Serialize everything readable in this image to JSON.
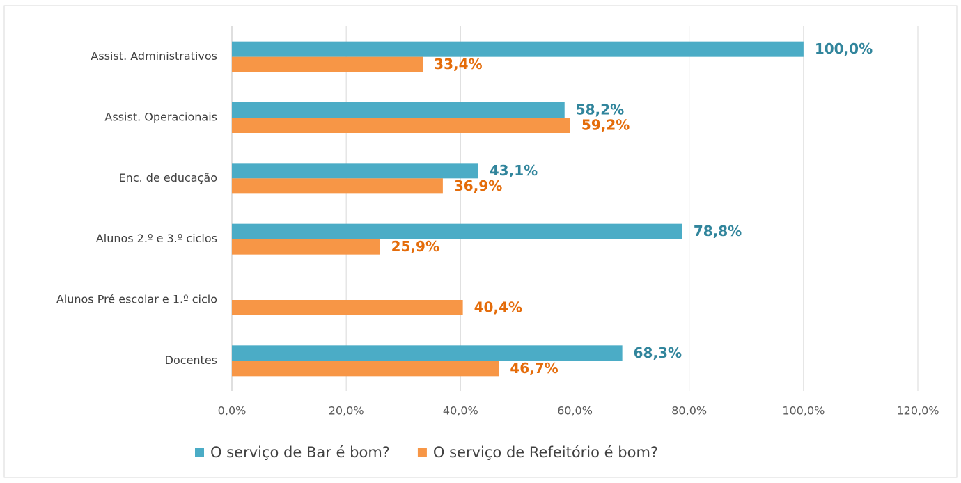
{
  "chart_data": {
    "type": "bar",
    "orientation": "horizontal",
    "categories": [
      "Assist. Administrativos",
      "Assist. Operacionais",
      "Enc. de educação",
      "Alunos 2.º e 3.º ciclos",
      "Alunos Pré escolar e 1.º ciclo",
      "Docentes"
    ],
    "series": [
      {
        "name": "O serviço de Bar é bom?",
        "color": "#4bacc6",
        "label_color": "#31859c",
        "values": [
          100,
          58.2,
          43.1,
          78.8,
          null,
          68.3
        ],
        "value_labels": [
          "100,0%",
          "58,2%",
          "43,1%",
          "78,8%",
          null,
          "68,3%"
        ]
      },
      {
        "name": "O serviço de Refeitório é bom?",
        "color": "#f79646",
        "label_color": "#e46c0a",
        "values": [
          33.4,
          59.2,
          36.9,
          25.9,
          40.4,
          46.7
        ],
        "value_labels": [
          "33,4%",
          "59,2%",
          "36,9%",
          "25,9%",
          "40,4%",
          "46,7%"
        ]
      }
    ],
    "xlim": [
      0,
      120
    ],
    "xticks": [
      {
        "value": 0,
        "label": "0,0%"
      },
      {
        "value": 20,
        "label": "20,0%"
      },
      {
        "value": 40,
        "label": "40,0%"
      },
      {
        "value": 60,
        "label": "60,0%"
      },
      {
        "value": 80,
        "label": "80,0%"
      },
      {
        "value": 100,
        "label": "100,0%"
      },
      {
        "value": 120,
        "label": "120,0%"
      }
    ],
    "grid": true,
    "legend": "bottom"
  }
}
